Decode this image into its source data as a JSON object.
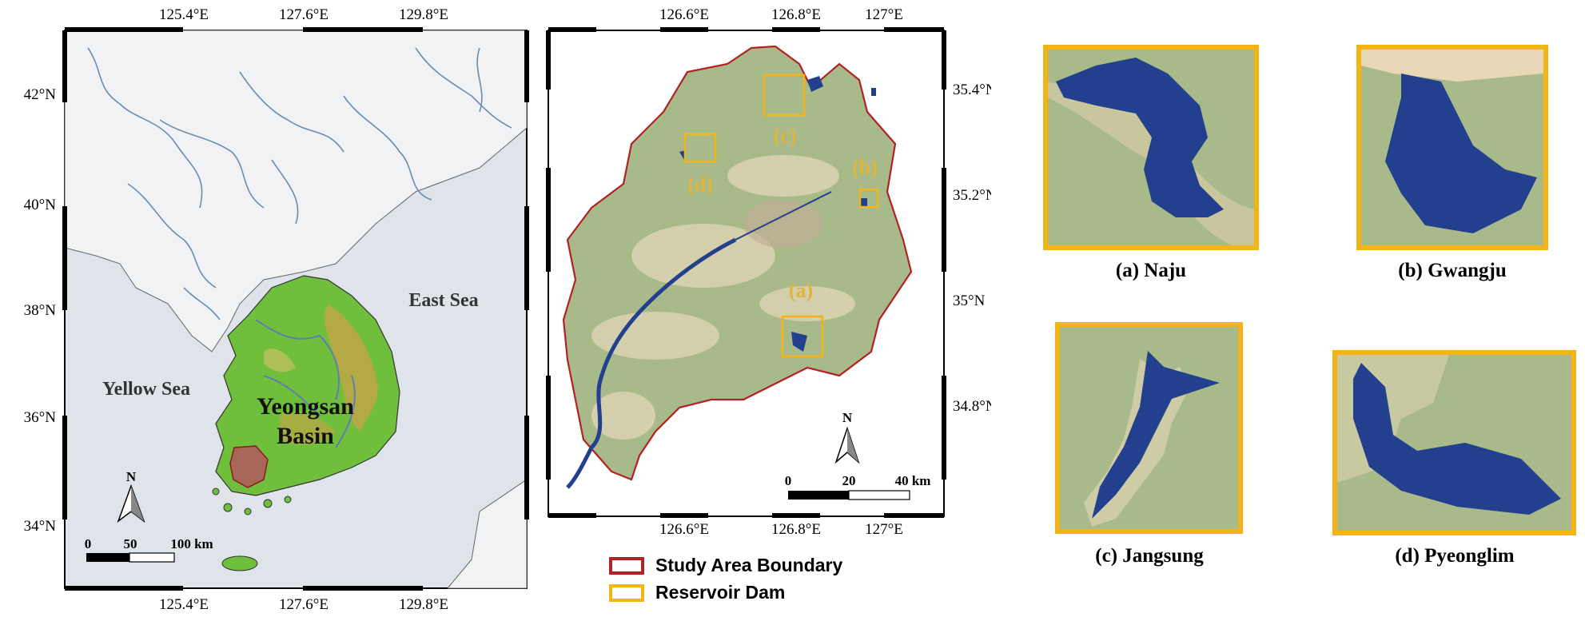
{
  "map1": {
    "top_ticks": [
      "125.4°E",
      "127.6°E",
      "129.8°E"
    ],
    "bottom_ticks": [
      "125.4°E",
      "127.6°E",
      "129.8°E"
    ],
    "left_ticks": [
      "42°N",
      "40°N",
      "38°N",
      "36°N",
      "34°N"
    ],
    "east_sea": "East Sea",
    "yellow_sea": "Yellow Sea",
    "basin_line1": "Yeongsan",
    "basin_line2": "Basin",
    "north": "N",
    "scale": [
      "0",
      "50",
      "100 km"
    ]
  },
  "map2": {
    "top_ticks": [
      "126.6°E",
      "126.8°E",
      "127°E"
    ],
    "bottom_ticks": [
      "126.6°E",
      "126.8°E",
      "127°E"
    ],
    "right_ticks": [
      "35.4°N",
      "35.2°N",
      "35°N",
      "34.8°N"
    ],
    "site_labels": {
      "a": "(a)",
      "b": "(b)",
      "c": "(c)",
      "d": "(d)"
    },
    "north": "N",
    "scale": [
      "0",
      "20",
      "40 km"
    ]
  },
  "legend": {
    "boundary": "Study Area Boundary",
    "boundary_color": "#b22222",
    "dam": "Reservoir Dam",
    "dam_color": "#f5b416"
  },
  "insets": {
    "a": "(a) Naju",
    "b": "(b) Gwangju",
    "c": "(c) Jangsung",
    "d": "(d) Pyeonglim"
  },
  "colors": {
    "water": "#23408f",
    "land": "#a8b98a",
    "frame": "#f5b416"
  }
}
